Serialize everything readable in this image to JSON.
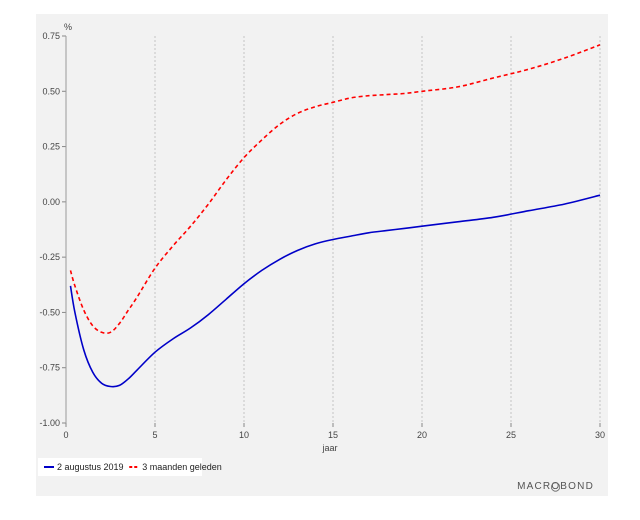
{
  "chart_data": {
    "type": "line",
    "y_unit_label": "%",
    "xlabel": "jaar",
    "xlim": [
      0,
      30
    ],
    "ylim": [
      -1.0,
      0.75
    ],
    "x_ticks": [
      0,
      5,
      10,
      15,
      20,
      25,
      30
    ],
    "y_ticks": [
      -1.0,
      -0.75,
      -0.5,
      -0.25,
      0.0,
      0.25,
      0.5,
      0.75
    ],
    "y_tick_labels": [
      "-1.00",
      "-0.75",
      "-0.50",
      "-0.25",
      "0.00",
      "0.25",
      "0.50",
      "0.75"
    ],
    "x_tick_labels": [
      "0",
      "5",
      "10",
      "15",
      "20",
      "25",
      "30"
    ],
    "grid": "vertical dotted",
    "legend_position": "bottom-left",
    "series": [
      {
        "name": "2 augustus 2019",
        "color": "#0000c8",
        "style": "solid",
        "x": [
          0.25,
          0.5,
          1,
          1.5,
          2,
          2.5,
          3,
          3.5,
          4,
          5,
          6,
          7,
          8,
          9,
          10,
          11,
          12,
          13,
          14,
          15,
          16,
          17,
          18,
          19,
          20,
          22,
          24,
          26,
          28,
          30
        ],
        "y": [
          -0.38,
          -0.5,
          -0.67,
          -0.77,
          -0.82,
          -0.835,
          -0.83,
          -0.8,
          -0.76,
          -0.68,
          -0.62,
          -0.57,
          -0.51,
          -0.44,
          -0.37,
          -0.31,
          -0.26,
          -0.22,
          -0.19,
          -0.17,
          -0.155,
          -0.14,
          -0.13,
          -0.12,
          -0.11,
          -0.09,
          -0.07,
          -0.04,
          -0.01,
          0.03
        ]
      },
      {
        "name": "3 maanden geleden",
        "color": "#ff0000",
        "style": "dashed",
        "x": [
          0.25,
          0.5,
          1,
          1.5,
          2,
          2.5,
          3,
          3.5,
          4,
          5,
          6,
          7,
          8,
          9,
          10,
          11,
          12,
          13,
          14,
          15,
          16,
          17,
          18,
          19,
          20,
          22,
          24,
          26,
          28,
          30
        ],
        "y": [
          -0.31,
          -0.38,
          -0.49,
          -0.56,
          -0.59,
          -0.59,
          -0.55,
          -0.49,
          -0.43,
          -0.3,
          -0.2,
          -0.11,
          -0.01,
          0.1,
          0.2,
          0.28,
          0.35,
          0.4,
          0.43,
          0.45,
          0.47,
          0.48,
          0.485,
          0.49,
          0.5,
          0.52,
          0.56,
          0.6,
          0.65,
          0.71
        ]
      }
    ]
  },
  "brand": "MACROBOND"
}
